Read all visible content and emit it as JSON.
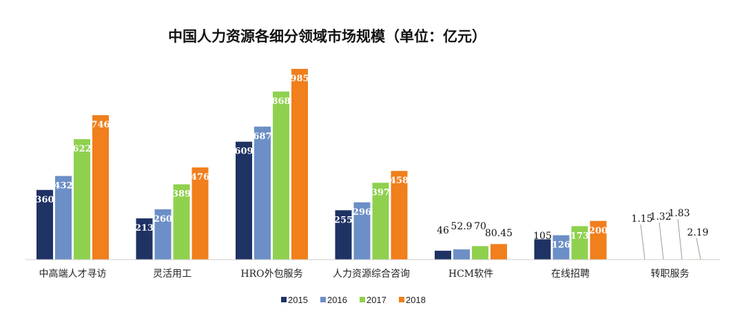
{
  "chart_data": {
    "type": "bar",
    "title": "中国人力资源各细分领域市场规模（单位：亿元）",
    "categories": [
      "中高端人才寻访",
      "灵活用工",
      "HRO外包服务",
      "人力资源综合咨询",
      "HCM软件",
      "在线招聘",
      "转职服务"
    ],
    "series": [
      {
        "name": "2015",
        "color": "#1f3264",
        "values": [
          360,
          213,
          609,
          255,
          46,
          105,
          1.15
        ],
        "labels": [
          "360",
          "213",
          "609",
          "255",
          "46",
          "105",
          "1.15"
        ]
      },
      {
        "name": "2016",
        "color": "#6b8fc6",
        "values": [
          432,
          260,
          687,
          296,
          52.9,
          126,
          1.32
        ],
        "labels": [
          "432",
          "260",
          "687",
          "296",
          "52.9",
          "126",
          "1.32"
        ]
      },
      {
        "name": "2017",
        "color": "#8fd14f",
        "values": [
          622,
          389,
          868,
          397,
          70,
          173,
          1.83
        ],
        "labels": [
          "622",
          "389",
          "868",
          "397",
          "70",
          "173",
          "1.83"
        ]
      },
      {
        "name": "2018",
        "color": "#f07f1c",
        "values": [
          746,
          476,
          985,
          458,
          80.45,
          200,
          2.19
        ],
        "labels": [
          "746",
          "476",
          "985",
          "458",
          "80.45",
          "200",
          "2.19"
        ]
      }
    ],
    "ylim": [
      0,
      985
    ],
    "grid": false,
    "legend_position": "bottom"
  }
}
